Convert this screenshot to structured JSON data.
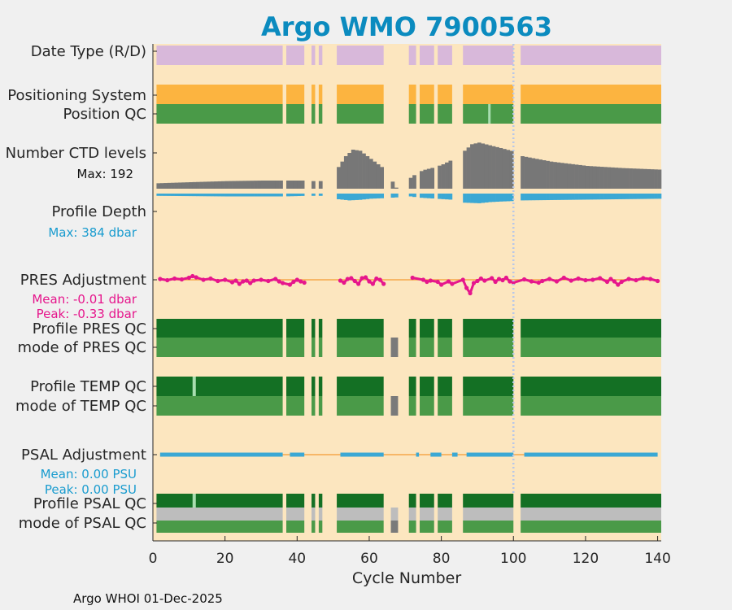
{
  "title": "Argo WMO 7900563",
  "footer": "Argo WHOI 01-Dec-2025",
  "colors": {
    "background": "#fce6bf",
    "figure": "#f0f0f0",
    "date_type": "#d8b8da",
    "positioning": "#fcb440",
    "qc_good": "#4a9a48",
    "qc_dark": "#147024",
    "qc_light": "#a8ddb0",
    "qc_grey": "#7a7a7a",
    "qc_silver": "#bdbdbd",
    "ctd": "#777777",
    "depth": "#3ba8d4",
    "pres_adj": "#e6168c",
    "psal_adj": "#3ba8d4",
    "zero_line": "#f5a74a",
    "cursor": "#b8c8e8",
    "title": "#0b8bbf"
  },
  "row_labels": {
    "date_type": "Date Type (R/D)",
    "positioning_system": "Positioning System",
    "position_qc": "Position QC",
    "ctd_levels": "Number CTD levels",
    "ctd_max": "Max: 192",
    "profile_depth": "Profile Depth",
    "depth_max": "Max:  384 dbar",
    "pres_adjustment": "PRES Adjustment",
    "pres_mean": "Mean: -0.01 dbar",
    "pres_peak": "Peak: -0.33 dbar",
    "profile_pres_qc": "Profile PRES QC",
    "mode_pres_qc": "mode of PRES QC",
    "profile_temp_qc": "Profile TEMP QC",
    "mode_temp_qc": "mode of TEMP QC",
    "psal_adjustment": "PSAL Adjustment",
    "psal_mean": "Mean: 0.00 PSU",
    "psal_peak": "Peak: 0.00 PSU",
    "profile_psal_qc": "Profile PSAL QC",
    "mode_psal_qc": "mode of PSAL QC"
  },
  "chart_data": {
    "type": "bar",
    "xlabel": "Cycle Number",
    "xlim": [
      0,
      141
    ],
    "xticks": [
      0,
      20,
      40,
      60,
      80,
      100,
      120,
      140
    ],
    "cursor_cycle": 100,
    "ctd_max": 192,
    "depth_max_dbar": 384,
    "cycle_segments": [
      [
        1,
        36
      ],
      [
        37,
        42
      ],
      [
        44,
        45
      ],
      [
        46,
        47
      ],
      [
        51,
        64
      ],
      [
        66,
        68
      ],
      [
        71,
        73
      ],
      [
        74,
        78
      ],
      [
        79,
        83
      ],
      [
        86,
        100
      ],
      [
        102,
        141
      ]
    ],
    "grey_cycles": [
      66,
      67
    ],
    "light_position_qc_cycles": [
      93
    ],
    "light_temp_qc_cycles": [
      11
    ],
    "light_psal_qc_cycles": [
      11
    ],
    "psal_mode_grey_cycles": [
      [
        1,
        36
      ],
      [
        37,
        42
      ],
      [
        44,
        45
      ],
      [
        46,
        47
      ],
      [
        51,
        64
      ],
      [
        66,
        68
      ],
      [
        71,
        73
      ],
      [
        74,
        78
      ],
      [
        79,
        83
      ],
      [
        86,
        100
      ],
      [
        102,
        141
      ]
    ],
    "ctd_levels_anchors": [
      [
        1,
        10
      ],
      [
        10,
        12
      ],
      [
        20,
        14
      ],
      [
        30,
        15
      ],
      [
        36,
        15
      ],
      [
        37,
        15
      ],
      [
        42,
        15
      ],
      [
        44,
        14
      ],
      [
        47,
        14
      ],
      [
        51,
        40
      ],
      [
        53,
        60
      ],
      [
        55,
        72
      ],
      [
        57,
        70
      ],
      [
        60,
        55
      ],
      [
        63,
        40
      ],
      [
        64,
        35
      ],
      [
        67,
        2
      ],
      [
        71,
        20
      ],
      [
        73,
        30
      ],
      [
        75,
        35
      ],
      [
        78,
        40
      ],
      [
        80,
        45
      ],
      [
        83,
        55
      ],
      [
        86,
        70
      ],
      [
        88,
        82
      ],
      [
        90,
        85
      ],
      [
        93,
        80
      ],
      [
        96,
        75
      ],
      [
        100,
        68
      ],
      [
        102,
        60
      ],
      [
        110,
        50
      ],
      [
        120,
        42
      ],
      [
        130,
        38
      ],
      [
        141,
        35
      ]
    ],
    "depth_anchors": [
      [
        1,
        4
      ],
      [
        20,
        5
      ],
      [
        36,
        5
      ],
      [
        42,
        4
      ],
      [
        47,
        4
      ],
      [
        51,
        10
      ],
      [
        54,
        12
      ],
      [
        57,
        11
      ],
      [
        60,
        9
      ],
      [
        64,
        8
      ],
      [
        71,
        5
      ],
      [
        73,
        7
      ],
      [
        78,
        9
      ],
      [
        83,
        11
      ],
      [
        86,
        16
      ],
      [
        90,
        17
      ],
      [
        93,
        15
      ],
      [
        96,
        14
      ],
      [
        100,
        13
      ],
      [
        102,
        12
      ],
      [
        141,
        9
      ]
    ],
    "pres_adjustment_points": [
      [
        2,
        0.02
      ],
      [
        4,
        -0.01
      ],
      [
        6,
        0.03
      ],
      [
        8,
        0.01
      ],
      [
        10,
        0.05
      ],
      [
        11,
        0.09
      ],
      [
        12,
        0.06
      ],
      [
        14,
        0.0
      ],
      [
        16,
        0.03
      ],
      [
        18,
        -0.03
      ],
      [
        20,
        0.0
      ],
      [
        22,
        -0.06
      ],
      [
        23,
        -0.02
      ],
      [
        24,
        -0.1
      ],
      [
        25,
        -0.04
      ],
      [
        26,
        -0.02
      ],
      [
        27,
        -0.08
      ],
      [
        28,
        -0.02
      ],
      [
        30,
        0.0
      ],
      [
        32,
        -0.03
      ],
      [
        34,
        0.02
      ],
      [
        35,
        -0.04
      ],
      [
        36,
        -0.08
      ],
      [
        38,
        -0.12
      ],
      [
        39,
        -0.05
      ],
      [
        40,
        0.0
      ],
      [
        41,
        -0.04
      ],
      [
        42,
        -0.07
      ],
      [
        52,
        -0.02
      ],
      [
        53,
        -0.07
      ],
      [
        54,
        0.02
      ],
      [
        55,
        0.04
      ],
      [
        56,
        -0.03
      ],
      [
        57,
        -0.1
      ],
      [
        58,
        0.04
      ],
      [
        59,
        0.06
      ],
      [
        60,
        -0.04
      ],
      [
        61,
        -0.1
      ],
      [
        62,
        0.03
      ],
      [
        63,
        0.0
      ],
      [
        64,
        -0.1
      ],
      [
        72,
        0.05
      ],
      [
        75,
        0.0
      ],
      [
        76,
        -0.05
      ],
      [
        77,
        -0.02
      ],
      [
        79,
        -0.05
      ],
      [
        80,
        -0.12
      ],
      [
        82,
        -0.04
      ],
      [
        83,
        -0.1
      ],
      [
        86,
        0.0
      ],
      [
        87,
        -0.2
      ],
      [
        88,
        -0.33
      ],
      [
        89,
        -0.08
      ],
      [
        90,
        -0.03
      ],
      [
        91,
        0.03
      ],
      [
        92,
        -0.02
      ],
      [
        94,
        0.04
      ],
      [
        95,
        -0.05
      ],
      [
        96,
        0.02
      ],
      [
        97,
        -0.01
      ],
      [
        98,
        0.05
      ],
      [
        99,
        -0.04
      ],
      [
        100,
        -0.07
      ],
      [
        103,
        0.01
      ],
      [
        105,
        -0.04
      ],
      [
        107,
        -0.07
      ],
      [
        108,
        -0.03
      ],
      [
        110,
        0.02
      ],
      [
        112,
        -0.04
      ],
      [
        114,
        0.05
      ],
      [
        116,
        -0.02
      ],
      [
        118,
        0.03
      ],
      [
        120,
        -0.01
      ],
      [
        122,
        0.0
      ],
      [
        124,
        0.04
      ],
      [
        126,
        -0.05
      ],
      [
        127,
        0.02
      ],
      [
        128,
        -0.04
      ],
      [
        129,
        -0.12
      ],
      [
        130,
        -0.05
      ],
      [
        132,
        0.02
      ],
      [
        134,
        -0.01
      ],
      [
        136,
        0.04
      ],
      [
        138,
        0.02
      ],
      [
        140,
        -0.03
      ]
    ]
  }
}
